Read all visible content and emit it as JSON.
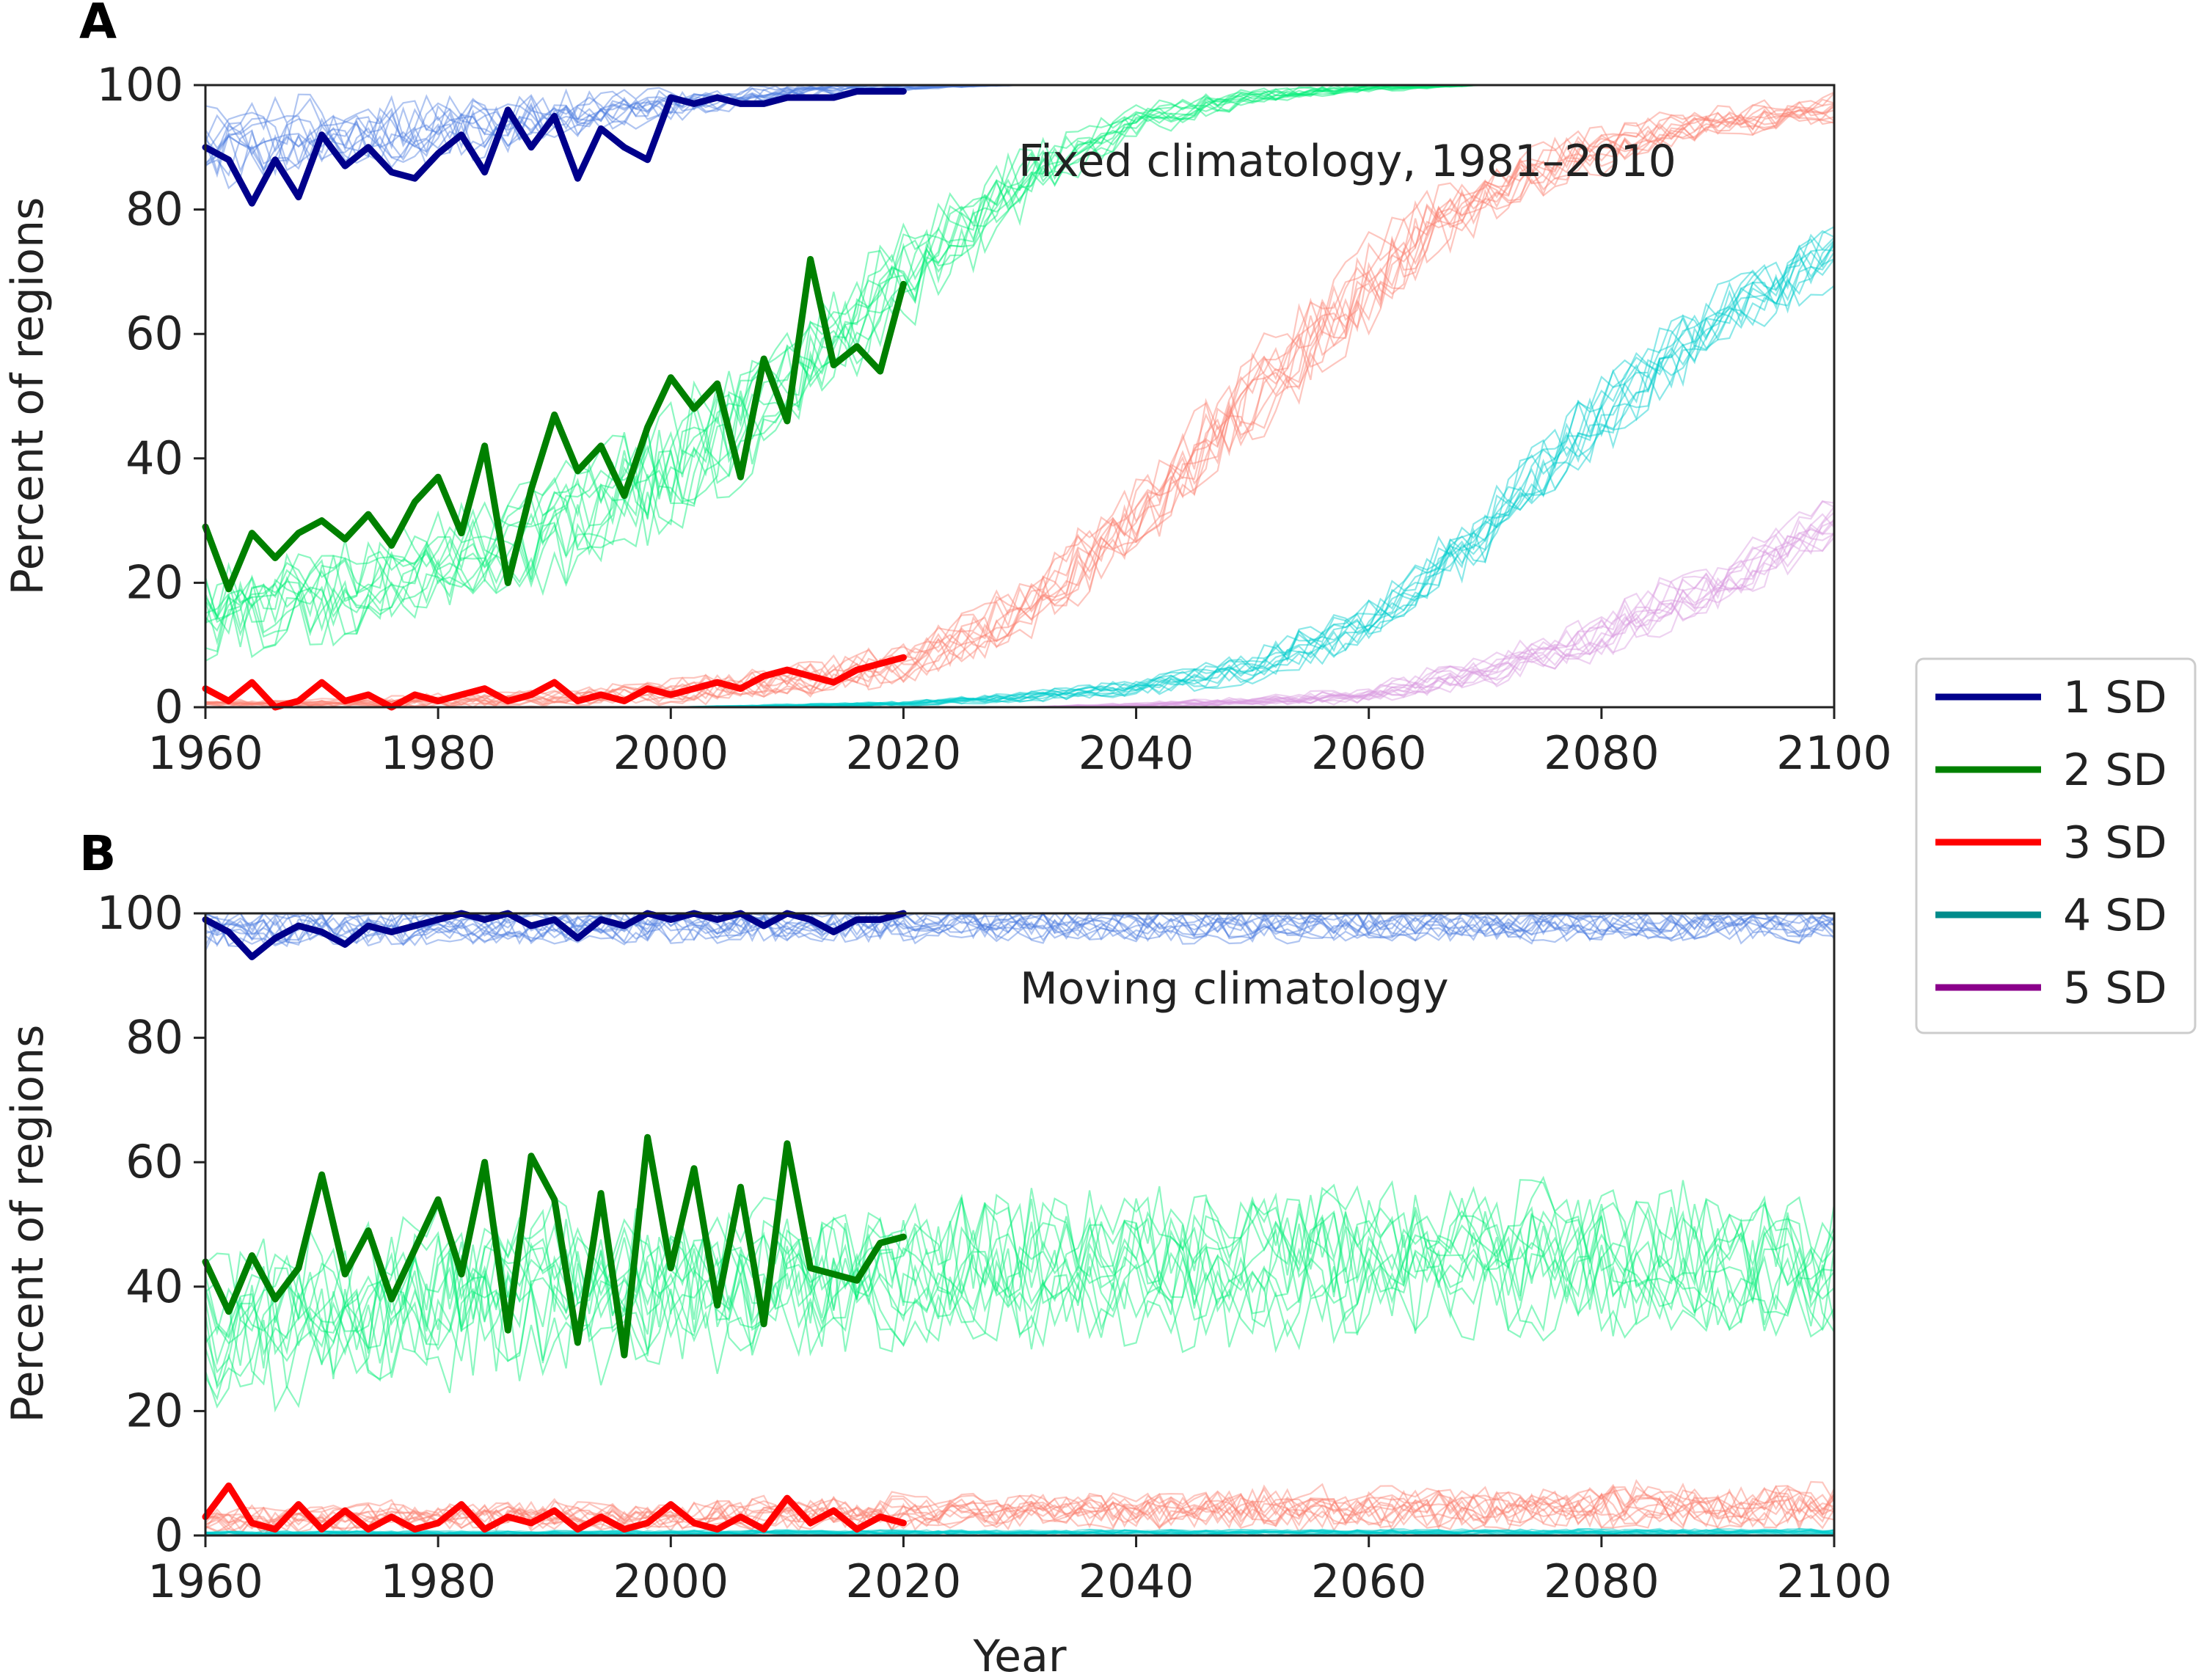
{
  "chart_data": [
    {
      "panel": "A",
      "type": "line",
      "annotation": "Fixed climatology, 1981–2010",
      "xlabel": "",
      "ylabel": "Percent of regions",
      "xlim": [
        1960,
        2100
      ],
      "ylim": [
        0,
        100
      ],
      "xticks": [
        "1960",
        "1980",
        "2000",
        "2020",
        "2040",
        "2060",
        "2080",
        "2100"
      ],
      "yticks": [
        "0",
        "20",
        "40",
        "60",
        "80",
        "100"
      ],
      "observed": [
        {
          "name": "1 SD",
          "x": [
            1960,
            1962,
            1964,
            1966,
            1968,
            1970,
            1972,
            1974,
            1976,
            1978,
            1980,
            1982,
            1984,
            1986,
            1988,
            1990,
            1992,
            1994,
            1996,
            1998,
            2000,
            2002,
            2004,
            2006,
            2008,
            2010,
            2012,
            2014,
            2016,
            2018,
            2020
          ],
          "y": [
            90,
            88,
            81,
            88,
            82,
            92,
            87,
            90,
            86,
            85,
            89,
            92,
            86,
            96,
            90,
            95,
            85,
            93,
            90,
            88,
            98,
            97,
            98,
            97,
            97,
            98,
            98,
            98,
            99,
            99,
            99
          ]
        },
        {
          "name": "2 SD",
          "x": [
            1960,
            1962,
            1964,
            1966,
            1968,
            1970,
            1972,
            1974,
            1976,
            1978,
            1980,
            1982,
            1984,
            1986,
            1988,
            1990,
            1992,
            1994,
            1996,
            1998,
            2000,
            2002,
            2004,
            2006,
            2008,
            2010,
            2012,
            2014,
            2016,
            2018,
            2020
          ],
          "y": [
            29,
            19,
            28,
            24,
            28,
            30,
            27,
            31,
            26,
            33,
            37,
            28,
            42,
            20,
            35,
            47,
            38,
            42,
            34,
            45,
            53,
            48,
            52,
            37,
            56,
            46,
            72,
            55,
            58,
            54,
            68
          ]
        },
        {
          "name": "3 SD",
          "x": [
            1960,
            1962,
            1964,
            1966,
            1968,
            1970,
            1972,
            1974,
            1976,
            1978,
            1980,
            1982,
            1984,
            1986,
            1988,
            1990,
            1992,
            1994,
            1996,
            1998,
            2000,
            2002,
            2004,
            2006,
            2008,
            2010,
            2012,
            2014,
            2016,
            2018,
            2020
          ],
          "y": [
            3,
            1,
            4,
            0,
            1,
            4,
            1,
            2,
            0,
            2,
            1,
            2,
            3,
            1,
            2,
            4,
            1,
            2,
            1,
            3,
            2,
            3,
            4,
            3,
            5,
            6,
            5,
            4,
            6,
            7,
            8
          ]
        }
      ],
      "ensembles": [
        {
          "name": "1 SD",
          "years": [
            1960,
            1970,
            1980,
            1990,
            2000,
            2010,
            2020,
            2030,
            2040,
            2050,
            2060,
            2070,
            2080,
            2090,
            2100
          ],
          "mean": [
            91,
            92,
            93,
            95,
            97,
            99,
            99.8,
            100,
            100,
            100,
            100,
            100,
            100,
            100,
            100
          ],
          "spread": [
            5,
            5,
            4,
            3,
            2,
            1,
            0.5,
            0,
            0,
            0,
            0,
            0,
            0,
            0,
            0
          ]
        },
        {
          "name": "2 SD",
          "years": [
            1960,
            1970,
            1980,
            1990,
            2000,
            2010,
            2020,
            2030,
            2040,
            2050,
            2060,
            2070,
            2080,
            2090,
            2100
          ],
          "mean": [
            15,
            18,
            22,
            28,
            37,
            52,
            68,
            84,
            94,
            98,
            99.5,
            100,
            100,
            100,
            100
          ],
          "spread": [
            5,
            6,
            6,
            7,
            8,
            7,
            6,
            4,
            2,
            1,
            0.5,
            0,
            0,
            0,
            0
          ]
        },
        {
          "name": "3 SD",
          "years": [
            1960,
            1970,
            1980,
            1990,
            2000,
            2010,
            2020,
            2030,
            2040,
            2050,
            2060,
            2070,
            2080,
            2090,
            2100
          ],
          "mean": [
            0.5,
            0.7,
            1,
            1.5,
            2.5,
            4,
            7,
            15,
            30,
            50,
            69,
            83,
            90,
            94,
            96
          ],
          "spread": [
            0.5,
            0.5,
            1,
            1,
            1.5,
            2,
            3,
            4,
            5,
            6,
            6,
            4,
            3,
            2,
            2
          ]
        },
        {
          "name": "4 SD",
          "years": [
            1960,
            1970,
            1980,
            1990,
            2000,
            2010,
            2020,
            2030,
            2040,
            2050,
            2060,
            2070,
            2080,
            2090,
            2100
          ],
          "mean": [
            0,
            0,
            0,
            0,
            0,
            0.2,
            0.5,
            1.5,
            3,
            6,
            13,
            28,
            46,
            62,
            72
          ],
          "spread": [
            0,
            0,
            0,
            0,
            0,
            0.2,
            0.3,
            0.6,
            1,
            2,
            3,
            4,
            5,
            4,
            4
          ]
        },
        {
          "name": "5 SD",
          "years": [
            1960,
            1970,
            1980,
            1990,
            2000,
            2010,
            2020,
            2030,
            2040,
            2050,
            2060,
            2070,
            2080,
            2090,
            2100
          ],
          "mean": [
            0,
            0,
            0,
            0,
            0,
            0,
            0,
            0,
            0.3,
            1,
            2,
            6,
            12,
            20,
            30
          ],
          "spread": [
            0,
            0,
            0,
            0,
            0,
            0,
            0,
            0,
            0.3,
            0.5,
            1,
            2,
            3,
            3,
            3
          ]
        }
      ]
    },
    {
      "panel": "B",
      "type": "line",
      "annotation": "Moving climatology",
      "xlabel": "Year",
      "ylabel": "Percent of regions",
      "xlim": [
        1960,
        2100
      ],
      "ylim": [
        0,
        100
      ],
      "xticks": [
        "1960",
        "1980",
        "2000",
        "2020",
        "2040",
        "2060",
        "2080",
        "2100"
      ],
      "yticks": [
        "0",
        "20",
        "40",
        "60",
        "80",
        "100"
      ],
      "observed": [
        {
          "name": "1 SD",
          "x": [
            1960,
            1962,
            1964,
            1966,
            1968,
            1970,
            1972,
            1974,
            1976,
            1978,
            1980,
            1982,
            1984,
            1986,
            1988,
            1990,
            1992,
            1994,
            1996,
            1998,
            2000,
            2002,
            2004,
            2006,
            2008,
            2010,
            2012,
            2014,
            2016,
            2018,
            2020
          ],
          "y": [
            99,
            97,
            93,
            96,
            98,
            97,
            95,
            98,
            97,
            98,
            99,
            100,
            99,
            100,
            98,
            99,
            96,
            99,
            98,
            100,
            99,
            100,
            99,
            100,
            98,
            100,
            99,
            97,
            99,
            99,
            100
          ]
        },
        {
          "name": "2 SD",
          "x": [
            1960,
            1962,
            1964,
            1966,
            1968,
            1970,
            1972,
            1974,
            1976,
            1978,
            1980,
            1982,
            1984,
            1986,
            1988,
            1990,
            1992,
            1994,
            1996,
            1998,
            2000,
            2002,
            2004,
            2006,
            2008,
            2010,
            2012,
            2014,
            2016,
            2018,
            2020
          ],
          "y": [
            44,
            36,
            45,
            38,
            43,
            58,
            42,
            49,
            38,
            46,
            54,
            42,
            60,
            33,
            61,
            54,
            31,
            55,
            29,
            64,
            43,
            59,
            37,
            56,
            34,
            63,
            43,
            42,
            41,
            47,
            48
          ]
        },
        {
          "name": "3 SD",
          "x": [
            1960,
            1962,
            1964,
            1966,
            1968,
            1970,
            1972,
            1974,
            1976,
            1978,
            1980,
            1982,
            1984,
            1986,
            1988,
            1990,
            1992,
            1994,
            1996,
            1998,
            2000,
            2002,
            2004,
            2006,
            2008,
            2010,
            2012,
            2014,
            2016,
            2018,
            2020
          ],
          "y": [
            3,
            8,
            2,
            1,
            5,
            1,
            4,
            1,
            3,
            1,
            2,
            5,
            1,
            3,
            2,
            4,
            1,
            3,
            1,
            2,
            5,
            2,
            1,
            3,
            1,
            6,
            2,
            4,
            1,
            3,
            2
          ]
        }
      ],
      "ensembles": [
        {
          "name": "1 SD",
          "years": [
            1960,
            1980,
            2000,
            2020,
            2040,
            2060,
            2080,
            2100
          ],
          "mean": [
            98,
            98,
            98.5,
            98.5,
            98.5,
            98.5,
            98.5,
            98.5
          ],
          "spread": [
            3,
            2.5,
            2.5,
            2.5,
            2.5,
            2.5,
            2.5,
            2.5
          ]
        },
        {
          "name": "2 SD",
          "years": [
            1960,
            1980,
            2000,
            2020,
            2040,
            2060,
            2080,
            2100
          ],
          "mean": [
            33,
            38,
            40,
            42,
            43,
            44,
            44,
            43
          ],
          "spread": [
            9,
            10,
            10,
            9,
            9,
            9,
            9,
            9
          ]
        },
        {
          "name": "3 SD",
          "years": [
            1960,
            1980,
            2000,
            2020,
            2040,
            2060,
            2080,
            2100
          ],
          "mean": [
            2,
            3,
            3,
            3.5,
            4,
            4,
            4.5,
            4.5
          ],
          "spread": [
            2,
            2,
            2,
            2.5,
            2.5,
            3,
            3,
            3
          ]
        },
        {
          "name": "4 SD",
          "years": [
            1960,
            2100
          ],
          "mean": [
            0.3,
            0.5
          ],
          "spread": [
            0.3,
            0.4
          ]
        }
      ]
    }
  ],
  "legend": {
    "placement": "right",
    "items": [
      {
        "label": "1 SD",
        "color": "#00008b"
      },
      {
        "label": "2 SD",
        "color": "#008000"
      },
      {
        "label": "3 SD",
        "color": "#ff0000"
      },
      {
        "label": "4 SD",
        "color": "#008b8b"
      },
      {
        "label": "5 SD",
        "color": "#8b008b"
      }
    ]
  },
  "ensemble_colors": {
    "1 SD": "#4f7fdf",
    "2 SD": "#00ee76",
    "3 SD": "#fa8072",
    "4 SD": "#00cdcd",
    "5 SD": "#da9ce0"
  },
  "observed_colors": {
    "1 SD": "#00008b",
    "2 SD": "#008000",
    "3 SD": "#ff0000"
  }
}
